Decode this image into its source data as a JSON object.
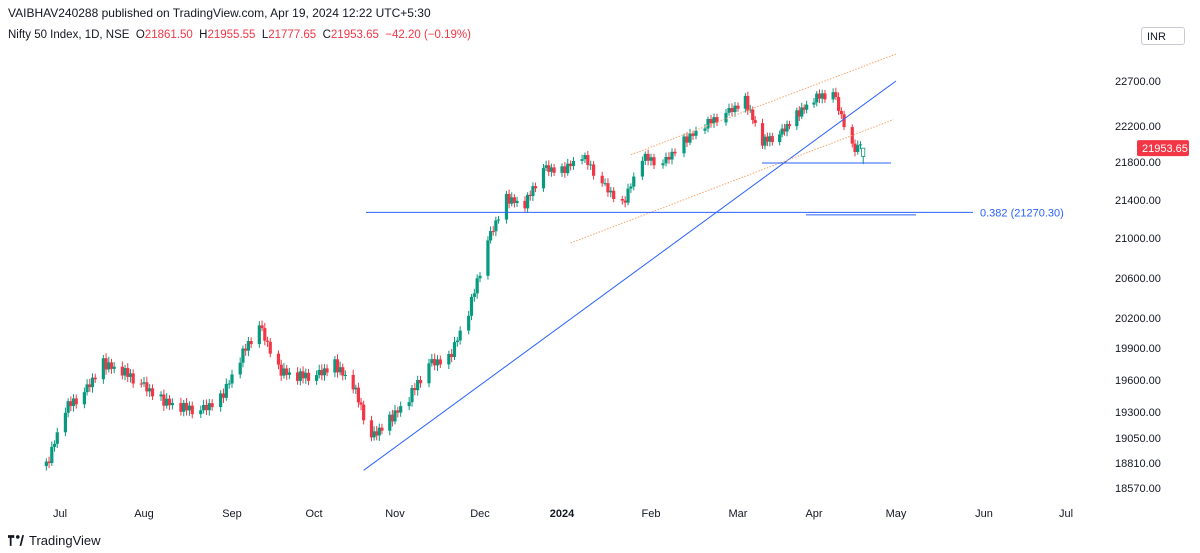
{
  "header": {
    "publisher": "VAIBHAV240288 published on TradingView.com, Apr 19, 2024 12:22 UTC+5:30",
    "symbol": "Nifty 50 Index, 1D, NSE",
    "o_label": "O",
    "open": "21861.50",
    "h_label": "H",
    "high": "21955.55",
    "l_label": "L",
    "low": "21777.65",
    "c_label": "C",
    "close": "21953.65",
    "change": "−42.20 (−0.19%)",
    "currency": "INR"
  },
  "brand": {
    "name": "TradingView",
    "logo_icon": "tradingview-logo-icon"
  },
  "colors": {
    "up": "#089981",
    "down": "#f23645",
    "trend": "#2962ff",
    "channel": "#f7a46b",
    "last_price": "#f23645"
  },
  "chart_data": {
    "type": "candlestick",
    "interval": "1D",
    "currency": "INR",
    "grid": false,
    "x_months": [
      "Jul",
      "Aug",
      "Sep",
      "Oct",
      "Nov",
      "Dec",
      "2024",
      "Feb",
      "Mar",
      "Apr",
      "May",
      "Jun",
      "Jul"
    ],
    "y_ticks": [
      22700,
      22200,
      21800,
      21400,
      21000,
      20600,
      20200,
      19900,
      19600,
      19300,
      19050,
      18810,
      18570
    ],
    "y_tick_labels": [
      "22700.00",
      "22200.00",
      "21800.00",
      "21400.00",
      "21000.00",
      "20600.00",
      "20200.00",
      "19900.00",
      "19600.00",
      "19300.00",
      "19050.00",
      "18810.00",
      "18570.00"
    ],
    "last_price_label": "21953.65",
    "last_price": 21953.65,
    "fib_level": {
      "ratio": "0.382",
      "value": 21270.3,
      "label": "0.382 (21270.30)"
    },
    "support_level": 21790,
    "trendline": {
      "from": [
        "2023-10-20",
        18740
      ],
      "to": [
        "2024-05-01",
        22700
      ]
    },
    "channel": {
      "upper": {
        "from": [
          "2024-01-25",
          21880
        ],
        "to": [
          "2024-05-01",
          23000
        ]
      },
      "lower": {
        "from": [
          "2024-01-04",
          20950
        ],
        "to": [
          "2024-04-30",
          22270
        ]
      }
    },
    "candles": []
  }
}
